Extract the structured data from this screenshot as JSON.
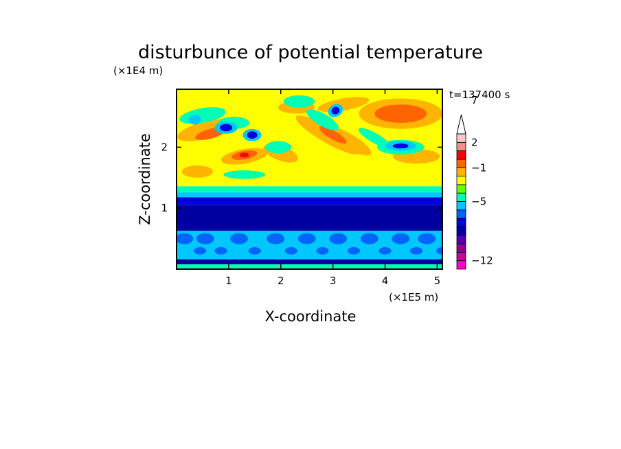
{
  "chart_data": {
    "type": "heatmap",
    "title": "disturbunce of potential temperature",
    "xlabel": "X-coordinate",
    "ylabel": "Z-coordinate",
    "x_unit": "(×1E5 m)",
    "y_unit": "(×1E4 m)",
    "time_label": "t=137400 s",
    "xlim": [
      0,
      5.1
    ],
    "ylim": [
      0,
      2.95
    ],
    "xticks": [
      1,
      2,
      3,
      4,
      5
    ],
    "yticks": [
      1,
      2
    ],
    "colorbar": {
      "labels": [
        {
          "text": "7",
          "level": 7
        },
        {
          "text": "2",
          "level": 2
        },
        {
          "text": "−1",
          "level": -1
        },
        {
          "text": "−5",
          "level": -5
        },
        {
          "text": "−12",
          "level": -12
        }
      ],
      "bins": [
        {
          "color": "#ff00c8"
        },
        {
          "color": "#c800a0"
        },
        {
          "color": "#8c0096"
        },
        {
          "color": "#5000b4"
        },
        {
          "color": "#0000a0"
        },
        {
          "color": "#0000dc"
        },
        {
          "color": "#0064ff"
        },
        {
          "color": "#00c8ff"
        },
        {
          "color": "#00ffb4"
        },
        {
          "color": "#64ff00"
        },
        {
          "color": "#ffff00"
        },
        {
          "color": "#ffb400"
        },
        {
          "color": "#ff6400"
        },
        {
          "color": "#ff0000"
        },
        {
          "color": "#ff8c8c"
        },
        {
          "color": "#ffc8c8"
        }
      ],
      "extend_top": true
    },
    "regions": {
      "band_low_bg": {
        "value": -3,
        "color": "#00c8ff"
      },
      "band_low_patches": {
        "value": -4,
        "color": "#0064ff"
      },
      "band_bottom_green": {
        "value": 0,
        "color": "#00ffb4"
      },
      "band_dark": {
        "value": -6,
        "color": "#0000a0"
      },
      "band_blue_transition": {
        "value": -5,
        "color": "#0000dc"
      },
      "band_cyan_transition": {
        "value": -2,
        "color": "#00c8ff"
      },
      "band_green_transition": {
        "value": 0,
        "color": "#00ffb4"
      },
      "upper_bg": {
        "value": 2,
        "color": "#ffff00"
      },
      "warm_blobs": {
        "value": 4,
        "color": "#ffb400"
      },
      "hot_blobs": {
        "value": 6,
        "color": "#ff6400"
      },
      "hottest": {
        "value": 8,
        "color": "#ff0000"
      },
      "cool_blobs": {
        "value": 0,
        "color": "#00ffb4"
      },
      "cold_blobs": {
        "value": -3,
        "color": "#00c8ff"
      },
      "coldest": {
        "value": -6,
        "color": "#0000dc"
      }
    }
  }
}
